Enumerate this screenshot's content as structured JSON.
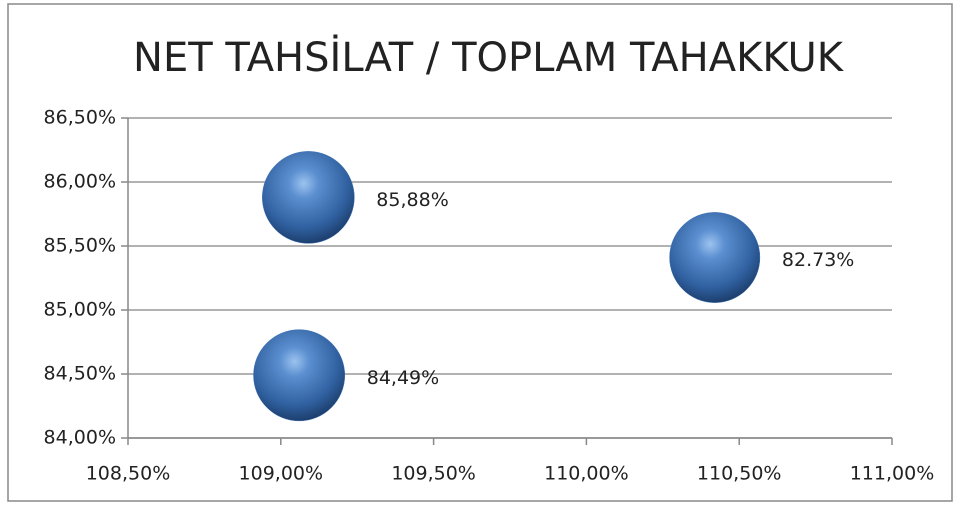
{
  "chart_data": {
    "type": "bubble",
    "title": "NET TAHSİLAT / TOPLAM TAHAKKUK",
    "color": "#3f72b5",
    "x": [
      109.09,
      109.06,
      110.42
    ],
    "values": [
      85.88,
      84.49,
      85.41
    ],
    "sizes": [
      85.88,
      84.49,
      82.73
    ],
    "size_labels": [
      "85,88%",
      "84,49%",
      "82.73%"
    ],
    "xlim": [
      108.5,
      111.0
    ],
    "xticks": [
      {
        "value": 108.5,
        "label": "108,50%"
      },
      {
        "value": 109.0,
        "label": "109,00%"
      },
      {
        "value": 109.5,
        "label": "109,50%"
      },
      {
        "value": 110.0,
        "label": "110,00%"
      },
      {
        "value": 110.5,
        "label": "110,50%"
      },
      {
        "value": 111.0,
        "label": "111,00%"
      }
    ],
    "ylim": [
      84.0,
      86.5
    ],
    "yticks": [
      {
        "value": 84.0,
        "label": "84,00%"
      },
      {
        "value": 84.5,
        "label": "84,50%"
      },
      {
        "value": 85.0,
        "label": "85,00%"
      },
      {
        "value": 85.5,
        "label": "85,50%"
      },
      {
        "value": 86.0,
        "label": "86,00%"
      },
      {
        "value": 86.5,
        "label": "86,50%"
      }
    ],
    "grid": true
  }
}
